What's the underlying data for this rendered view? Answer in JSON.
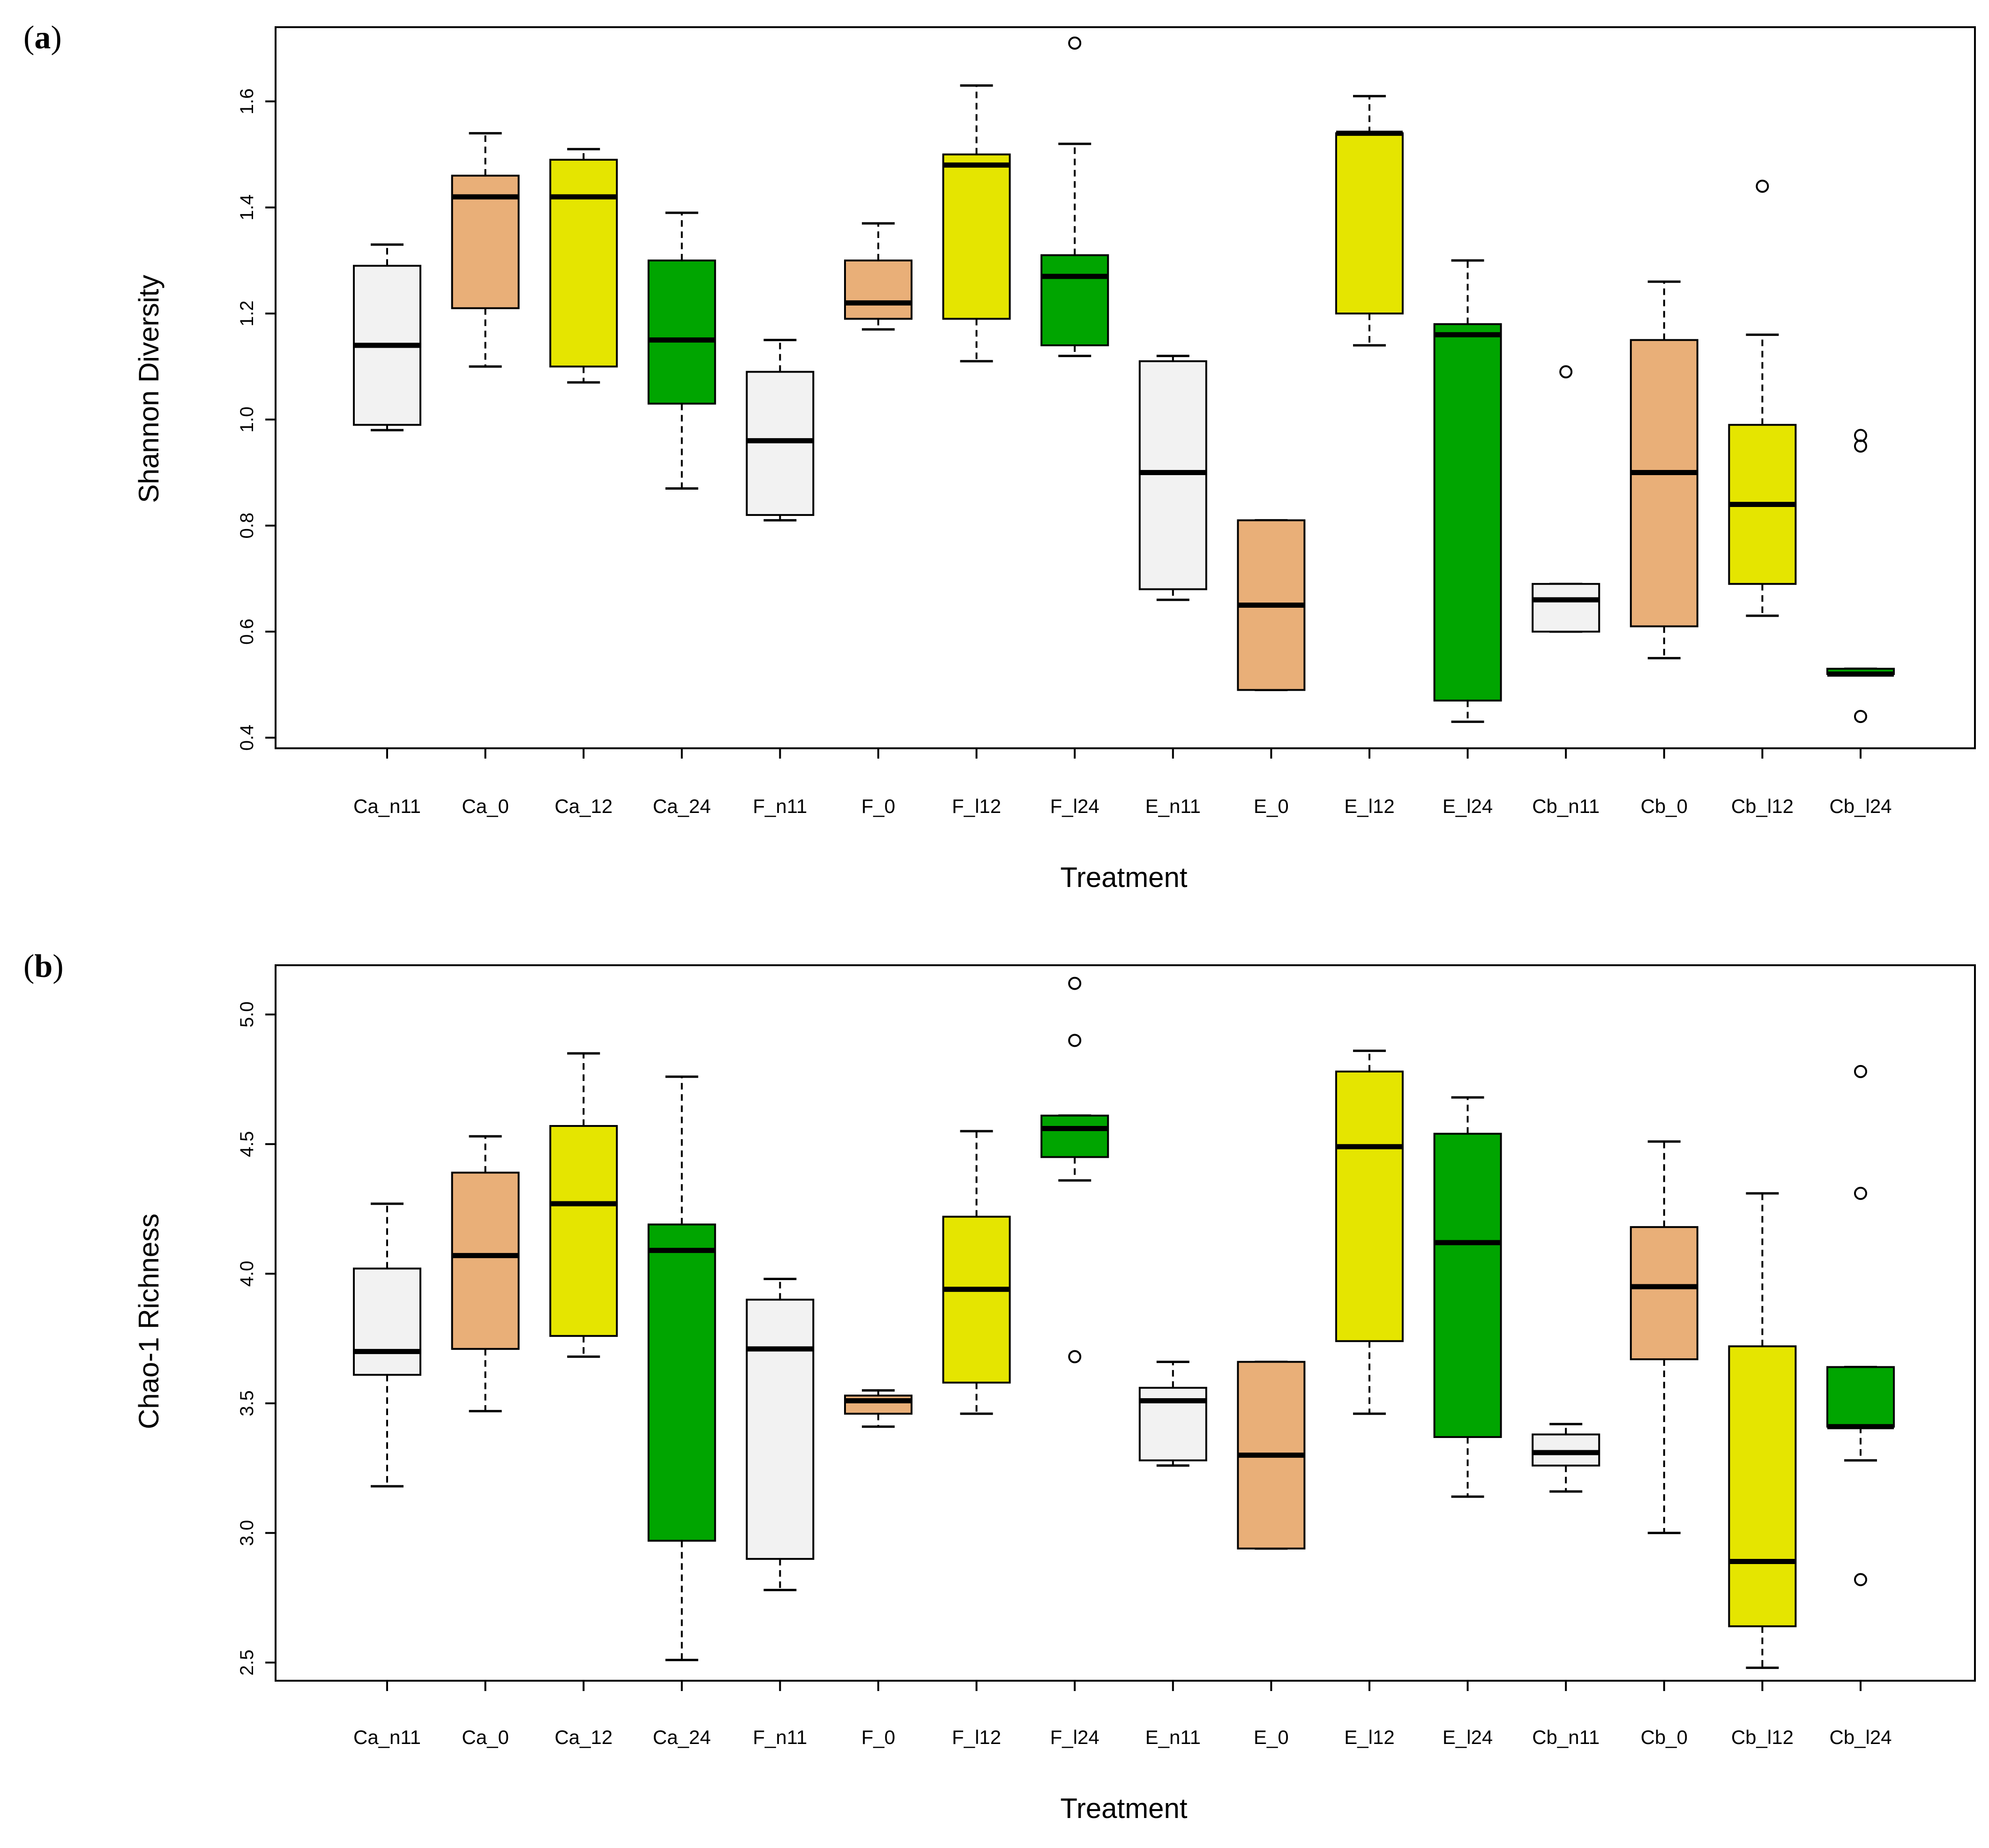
{
  "chart_data": [
    {
      "type": "boxplot",
      "panel_label": "a",
      "xlabel": "Treatment",
      "ylabel": "Shannon Diversity",
      "ylim": [
        0.38,
        1.74
      ],
      "yticks": [
        0.4,
        0.6,
        0.8,
        1.0,
        1.2,
        1.4,
        1.6
      ],
      "ytick_labels": [
        "0.4",
        "0.6",
        "0.8",
        "1.0",
        "1.2",
        "1.4",
        "1.6"
      ],
      "categories": [
        "Ca_n11",
        "Ca_0",
        "Ca_12",
        "Ca_24",
        "F_n11",
        "F_0",
        "F_l12",
        "F_l24",
        "E_n11",
        "E_0",
        "E_l12",
        "E_l24",
        "Cb_n11",
        "Cb_0",
        "Cb_l12",
        "Cb_l24"
      ],
      "colors": [
        "#f2f2f2",
        "#e9af78",
        "#e5e500",
        "#00a500",
        "#f2f2f2",
        "#e9af78",
        "#e5e500",
        "#00a500",
        "#f2f2f2",
        "#e9af78",
        "#e5e500",
        "#00a500",
        "#f2f2f2",
        "#e9af78",
        "#e5e500",
        "#00a500"
      ],
      "boxes": [
        {
          "whisker_low": 0.98,
          "q1": 0.99,
          "median": 1.14,
          "q3": 1.29,
          "whisker_high": 1.33,
          "outliers": []
        },
        {
          "whisker_low": 1.1,
          "q1": 1.21,
          "median": 1.42,
          "q3": 1.46,
          "whisker_high": 1.54,
          "outliers": []
        },
        {
          "whisker_low": 1.07,
          "q1": 1.1,
          "median": 1.42,
          "q3": 1.49,
          "whisker_high": 1.51,
          "outliers": []
        },
        {
          "whisker_low": 0.87,
          "q1": 1.03,
          "median": 1.15,
          "q3": 1.3,
          "whisker_high": 1.39,
          "outliers": []
        },
        {
          "whisker_low": 0.81,
          "q1": 0.82,
          "median": 0.96,
          "q3": 1.09,
          "whisker_high": 1.15,
          "outliers": []
        },
        {
          "whisker_low": 1.17,
          "q1": 1.19,
          "median": 1.22,
          "q3": 1.3,
          "whisker_high": 1.37,
          "outliers": []
        },
        {
          "whisker_low": 1.11,
          "q1": 1.19,
          "median": 1.48,
          "q3": 1.5,
          "whisker_high": 1.63,
          "outliers": []
        },
        {
          "whisker_low": 1.12,
          "q1": 1.14,
          "median": 1.27,
          "q3": 1.31,
          "whisker_high": 1.52,
          "outliers": [
            1.71
          ]
        },
        {
          "whisker_low": 0.66,
          "q1": 0.68,
          "median": 0.9,
          "q3": 1.11,
          "whisker_high": 1.12,
          "outliers": []
        },
        {
          "whisker_low": 0.49,
          "q1": 0.49,
          "median": 0.65,
          "q3": 0.81,
          "whisker_high": 0.81,
          "outliers": []
        },
        {
          "whisker_low": 1.14,
          "q1": 1.2,
          "median": 1.54,
          "q3": 1.54,
          "whisker_high": 1.61,
          "outliers": []
        },
        {
          "whisker_low": 0.43,
          "q1": 0.47,
          "median": 1.16,
          "q3": 1.18,
          "whisker_high": 1.3,
          "outliers": []
        },
        {
          "whisker_low": 0.6,
          "q1": 0.6,
          "median": 0.66,
          "q3": 0.69,
          "whisker_high": 0.69,
          "outliers": [
            1.09
          ]
        },
        {
          "whisker_low": 0.55,
          "q1": 0.61,
          "median": 0.9,
          "q3": 1.15,
          "whisker_high": 1.26,
          "outliers": []
        },
        {
          "whisker_low": 0.63,
          "q1": 0.69,
          "median": 0.84,
          "q3": 0.99,
          "whisker_high": 1.16,
          "outliers": [
            1.44
          ]
        },
        {
          "whisker_low": 0.52,
          "q1": 0.52,
          "median": 0.52,
          "q3": 0.53,
          "whisker_high": 0.53,
          "outliers": [
            0.97,
            0.95,
            0.44
          ]
        }
      ]
    },
    {
      "type": "boxplot",
      "panel_label": "b",
      "xlabel": "Treatment",
      "ylabel": "Chao-1 Richness",
      "ylim": [
        2.43,
        5.19
      ],
      "yticks": [
        2.5,
        3.0,
        3.5,
        4.0,
        4.5,
        5.0
      ],
      "ytick_labels": [
        "2.5",
        "3.0",
        "3.5",
        "4.0",
        "4.5",
        "5.0"
      ],
      "categories": [
        "Ca_n11",
        "Ca_0",
        "Ca_12",
        "Ca_24",
        "F_n11",
        "F_0",
        "F_l12",
        "F_l24",
        "E_n11",
        "E_0",
        "E_l12",
        "E_l24",
        "Cb_n11",
        "Cb_0",
        "Cb_l12",
        "Cb_l24"
      ],
      "colors": [
        "#f2f2f2",
        "#e9af78",
        "#e5e500",
        "#00a500",
        "#f2f2f2",
        "#e9af78",
        "#e5e500",
        "#00a500",
        "#f2f2f2",
        "#e9af78",
        "#e5e500",
        "#00a500",
        "#f2f2f2",
        "#e9af78",
        "#e5e500",
        "#00a500"
      ],
      "boxes": [
        {
          "whisker_low": 3.18,
          "q1": 3.61,
          "median": 3.7,
          "q3": 4.02,
          "whisker_high": 4.27,
          "outliers": []
        },
        {
          "whisker_low": 3.47,
          "q1": 3.71,
          "median": 4.07,
          "q3": 4.39,
          "whisker_high": 4.53,
          "outliers": []
        },
        {
          "whisker_low": 3.68,
          "q1": 3.76,
          "median": 4.27,
          "q3": 4.57,
          "whisker_high": 4.85,
          "outliers": []
        },
        {
          "whisker_low": 2.51,
          "q1": 2.97,
          "median": 4.09,
          "q3": 4.19,
          "whisker_high": 4.76,
          "outliers": []
        },
        {
          "whisker_low": 2.78,
          "q1": 2.9,
          "median": 3.71,
          "q3": 3.9,
          "whisker_high": 3.98,
          "outliers": []
        },
        {
          "whisker_low": 3.41,
          "q1": 3.46,
          "median": 3.51,
          "q3": 3.53,
          "whisker_high": 3.55,
          "outliers": []
        },
        {
          "whisker_low": 3.46,
          "q1": 3.58,
          "median": 3.94,
          "q3": 4.22,
          "whisker_high": 4.55,
          "outliers": []
        },
        {
          "whisker_low": 4.36,
          "q1": 4.45,
          "median": 4.56,
          "q3": 4.61,
          "whisker_high": 4.61,
          "outliers": [
            5.12,
            4.9,
            3.68
          ]
        },
        {
          "whisker_low": 3.26,
          "q1": 3.28,
          "median": 3.51,
          "q3": 3.56,
          "whisker_high": 3.66,
          "outliers": []
        },
        {
          "whisker_low": 2.94,
          "q1": 2.94,
          "median": 3.3,
          "q3": 3.66,
          "whisker_high": 3.66,
          "outliers": []
        },
        {
          "whisker_low": 3.46,
          "q1": 3.74,
          "median": 4.49,
          "q3": 4.78,
          "whisker_high": 4.86,
          "outliers": []
        },
        {
          "whisker_low": 3.14,
          "q1": 3.37,
          "median": 4.12,
          "q3": 4.54,
          "whisker_high": 4.68,
          "outliers": []
        },
        {
          "whisker_low": 3.16,
          "q1": 3.26,
          "median": 3.31,
          "q3": 3.38,
          "whisker_high": 3.42,
          "outliers": []
        },
        {
          "whisker_low": 3.0,
          "q1": 3.67,
          "median": 3.95,
          "q3": 4.18,
          "whisker_high": 4.51,
          "outliers": []
        },
        {
          "whisker_low": 2.48,
          "q1": 2.64,
          "median": 2.89,
          "q3": 3.72,
          "whisker_high": 4.31,
          "outliers": []
        },
        {
          "whisker_low": 3.28,
          "q1": 3.41,
          "median": 3.41,
          "q3": 3.64,
          "whisker_high": 3.64,
          "outliers": [
            4.78,
            4.31,
            2.82
          ]
        }
      ]
    }
  ]
}
